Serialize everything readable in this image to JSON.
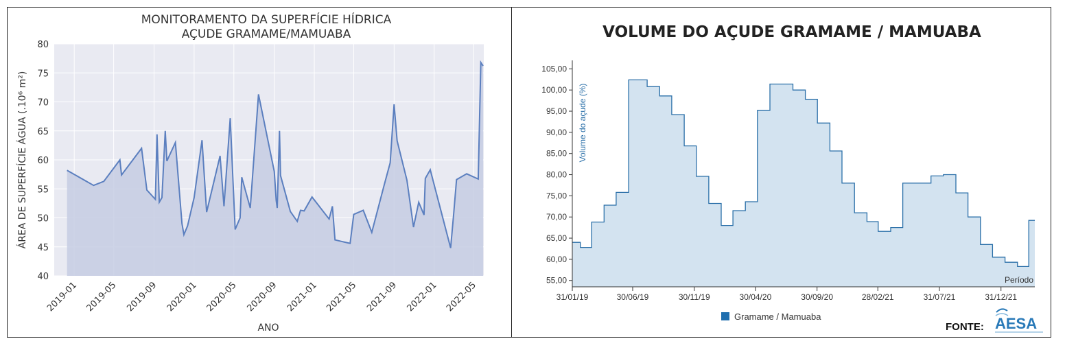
{
  "chart_data": [
    {
      "type": "area",
      "title": "MONITORAMENTO DA SUPERFÍCIE HÍDRICA",
      "subtitle": "AÇUDE GRAMAME/MAMUABA",
      "xlabel": "ANO",
      "ylabel": "ÁREA DE SUPERFÍCIE ÁGUA (.10⁶ m²)",
      "ylim": [
        40,
        80
      ],
      "xlim": [
        "2018-11-01",
        "2022-06-01"
      ],
      "y_ticks": [
        40,
        45,
        50,
        55,
        60,
        65,
        70,
        75,
        80
      ],
      "x_ticks": [
        "2019-01",
        "2019-05",
        "2019-09",
        "2020-01",
        "2020-05",
        "2020-09",
        "2021-01",
        "2021-05",
        "2021-09",
        "2022-01",
        "2022-05"
      ],
      "grid": true,
      "colors": {
        "line": "#5b7fbf",
        "fill": "#c5cce3",
        "background": "#e9eaf2",
        "grid": "#ffffff"
      },
      "points": [
        [
          "2018-12-10",
          58.2
        ],
        [
          "2019-03-01",
          55.6
        ],
        [
          "2019-04-01",
          56.3
        ],
        [
          "2019-05-20",
          60.0
        ],
        [
          "2019-05-25",
          57.4
        ],
        [
          "2019-07-25",
          62.0
        ],
        [
          "2019-08-10",
          54.8
        ],
        [
          "2019-09-05",
          53.2
        ],
        [
          "2019-09-10",
          64.4
        ],
        [
          "2019-09-17",
          52.7
        ],
        [
          "2019-09-25",
          53.5
        ],
        [
          "2019-10-05",
          65.0
        ],
        [
          "2019-10-10",
          59.8
        ],
        [
          "2019-11-05",
          63.0
        ],
        [
          "2019-11-25",
          49.0
        ],
        [
          "2019-12-01",
          47.1
        ],
        [
          "2019-12-12",
          48.6
        ],
        [
          "2020-01-01",
          53.5
        ],
        [
          "2020-01-25",
          63.4
        ],
        [
          "2020-02-08",
          51.0
        ],
        [
          "2020-03-20",
          60.7
        ],
        [
          "2020-04-01",
          52.0
        ],
        [
          "2020-04-20",
          67.2
        ],
        [
          "2020-05-05",
          48.0
        ],
        [
          "2020-05-20",
          50.0
        ],
        [
          "2020-05-25",
          57.0
        ],
        [
          "2020-06-20",
          51.7
        ],
        [
          "2020-07-15",
          71.3
        ],
        [
          "2020-09-01",
          58.0
        ],
        [
          "2020-09-07",
          53.0
        ],
        [
          "2020-09-10",
          51.7
        ],
        [
          "2020-09-17",
          65.0
        ],
        [
          "2020-09-20",
          57.3
        ],
        [
          "2020-10-20",
          51.1
        ],
        [
          "2020-11-10",
          49.4
        ],
        [
          "2020-11-20",
          51.3
        ],
        [
          "2020-12-01",
          51.2
        ],
        [
          "2020-12-25",
          53.6
        ],
        [
          "2021-02-15",
          49.8
        ],
        [
          "2021-02-25",
          52.0
        ],
        [
          "2021-03-05",
          46.2
        ],
        [
          "2021-03-20",
          46.0
        ],
        [
          "2021-04-20",
          45.6
        ],
        [
          "2021-05-01",
          50.6
        ],
        [
          "2021-05-30",
          51.3
        ],
        [
          "2021-06-25",
          47.5
        ],
        [
          "2021-08-01",
          55.5
        ],
        [
          "2021-08-20",
          59.5
        ],
        [
          "2021-09-01",
          69.6
        ],
        [
          "2021-09-10",
          63.3
        ],
        [
          "2021-10-10",
          56.5
        ],
        [
          "2021-10-30",
          48.4
        ],
        [
          "2021-11-15",
          52.7
        ],
        [
          "2021-12-01",
          50.5
        ],
        [
          "2021-12-05",
          56.8
        ],
        [
          "2021-12-20",
          58.3
        ],
        [
          "2022-02-20",
          44.8
        ],
        [
          "2022-03-01",
          50.5
        ],
        [
          "2022-03-10",
          56.6
        ],
        [
          "2022-04-10",
          57.6
        ],
        [
          "2022-05-15",
          56.7
        ],
        [
          "2022-05-23",
          76.8
        ],
        [
          "2022-05-30",
          76.2
        ]
      ]
    },
    {
      "type": "area",
      "title": "VOLUME DO AÇUDE GRAMAME / MAMUABA",
      "ylabel": "Volume do açude (%)",
      "xlabel": "Período",
      "ylim": [
        53.5,
        107
      ],
      "y_ticks": [
        "55,00",
        "60,00",
        "65,00",
        "70,00",
        "75,00",
        "80,00",
        "85,00",
        "90,00",
        "95,00",
        "100,00",
        "105,00"
      ],
      "x_ticks": [
        "31/01/19",
        "30/06/19",
        "30/11/19",
        "30/04/20",
        "30/09/20",
        "28/02/21",
        "31/07/21",
        "31/12/21"
      ],
      "legend": [
        "Gramame / Mamuaba"
      ],
      "legend_position": "bottom",
      "source_label": "FONTE:",
      "source_logo_text": "AESA",
      "colors": {
        "line": "#2a6fa8",
        "fill": "#d3e3f0",
        "legend": "#1f6faf",
        "logo": "#2a7ab8"
      },
      "x_start": "2019-01-31",
      "steps": [
        [
          "2019-01-31",
          64.0
        ],
        [
          "2019-02-20",
          62.8
        ],
        [
          "2019-03-20",
          68.8
        ],
        [
          "2019-04-20",
          72.8
        ],
        [
          "2019-05-20",
          75.8
        ],
        [
          "2019-06-20",
          102.4
        ],
        [
          "2019-08-05",
          100.8
        ],
        [
          "2019-09-05",
          98.6
        ],
        [
          "2019-10-05",
          94.2
        ],
        [
          "2019-11-05",
          86.8
        ],
        [
          "2019-12-05",
          79.6
        ],
        [
          "2020-01-05",
          73.2
        ],
        [
          "2020-02-05",
          68.0
        ],
        [
          "2020-03-05",
          71.5
        ],
        [
          "2020-04-05",
          73.6
        ],
        [
          "2020-05-05",
          95.2
        ],
        [
          "2020-06-05",
          101.4
        ],
        [
          "2020-08-01",
          100.0
        ],
        [
          "2020-09-01",
          97.8
        ],
        [
          "2020-10-01",
          92.2
        ],
        [
          "2020-11-01",
          85.6
        ],
        [
          "2020-12-01",
          78.0
        ],
        [
          "2021-01-01",
          71.0
        ],
        [
          "2021-02-01",
          68.9
        ],
        [
          "2021-03-01",
          66.6
        ],
        [
          "2021-04-01",
          67.5
        ],
        [
          "2021-05-01",
          78.0
        ],
        [
          "2021-07-10",
          79.7
        ],
        [
          "2021-08-10",
          80.0
        ],
        [
          "2021-09-10",
          75.7
        ],
        [
          "2021-10-10",
          70.0
        ],
        [
          "2021-11-10",
          63.5
        ],
        [
          "2021-12-10",
          60.5
        ],
        [
          "2022-01-10",
          59.3
        ],
        [
          "2022-02-10",
          58.3
        ],
        [
          "2022-03-10",
          69.2
        ]
      ],
      "x_end": "2022-03-25"
    }
  ]
}
